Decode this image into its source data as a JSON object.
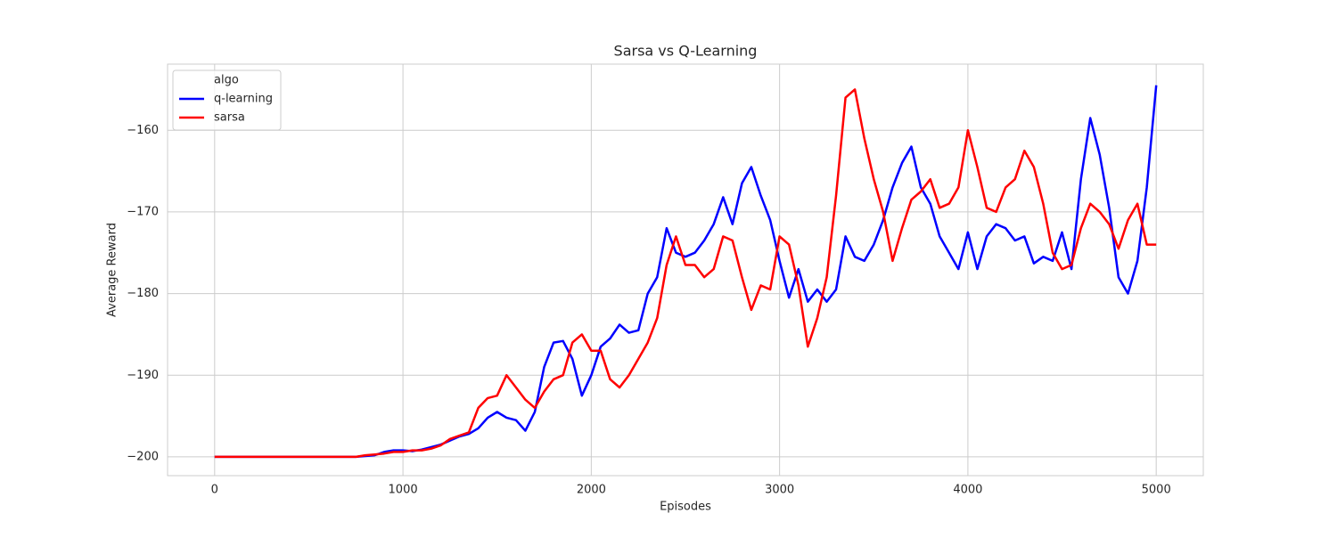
{
  "chart_data": {
    "type": "line",
    "title": "Sarsa vs Q-Learning",
    "x_label": "Episodes",
    "y_label": "Average Reward",
    "legend_title": "algo",
    "legend_position": "upper left",
    "grid": true,
    "x": [
      0,
      50,
      100,
      150,
      200,
      250,
      300,
      350,
      400,
      450,
      500,
      550,
      600,
      650,
      700,
      750,
      800,
      850,
      900,
      950,
      1000,
      1050,
      1100,
      1150,
      1200,
      1250,
      1300,
      1350,
      1400,
      1450,
      1500,
      1550,
      1600,
      1650,
      1700,
      1750,
      1800,
      1850,
      1900,
      1950,
      2000,
      2050,
      2100,
      2150,
      2200,
      2250,
      2300,
      2350,
      2400,
      2450,
      2500,
      2550,
      2600,
      2650,
      2700,
      2750,
      2800,
      2850,
      2900,
      2950,
      3000,
      3050,
      3100,
      3150,
      3200,
      3250,
      3300,
      3350,
      3400,
      3450,
      3500,
      3550,
      3600,
      3650,
      3700,
      3750,
      3800,
      3850,
      3900,
      3950,
      4000,
      4050,
      4100,
      4150,
      4200,
      4250,
      4300,
      4350,
      4400,
      4450,
      4500,
      4550,
      4600,
      4650,
      4700,
      4750,
      4800,
      4850,
      4900,
      4950,
      5000
    ],
    "series": [
      {
        "name": "q-learning",
        "color": "#0000ff",
        "values": [
          -200,
          -200,
          -200,
          -200,
          -200,
          -200,
          -200,
          -200,
          -200,
          -200,
          -200,
          -200,
          -200,
          -200,
          -200,
          -200,
          -199.9,
          -199.8,
          -199.4,
          -199.2,
          -199.2,
          -199.3,
          -199.1,
          -198.8,
          -198.5,
          -198,
          -197.5,
          -197.2,
          -196.5,
          -195.2,
          -194.5,
          -195.2,
          -195.5,
          -196.8,
          -194.5,
          -189,
          -186,
          -185.8,
          -188,
          -192.5,
          -190,
          -186.5,
          -185.5,
          -183.8,
          -184.8,
          -184.5,
          -180,
          -178,
          -172,
          -175,
          -175.5,
          -175,
          -173.5,
          -171.5,
          -168.2,
          -171.5,
          -166.5,
          -164.5,
          -168,
          -171,
          -176,
          -180.5,
          -177,
          -181,
          -179.5,
          -181,
          -179.5,
          -173,
          -175.5,
          -176,
          -174,
          -171,
          -167,
          -164,
          -162,
          -167,
          -169,
          -173,
          -175,
          -177,
          -172.5,
          -177,
          -173,
          -171.5,
          -172,
          -173.5,
          -173,
          -176.3,
          -175.5,
          -176,
          -172.5,
          -177,
          -166,
          -158.5,
          -163,
          -169.5,
          -178,
          -180,
          -176,
          -167,
          -154.5
        ]
      },
      {
        "name": "sarsa",
        "color": "#ff0000",
        "values": [
          -200,
          -200,
          -200,
          -200,
          -200,
          -200,
          -200,
          -200,
          -200,
          -200,
          -200,
          -200,
          -200,
          -200,
          -200,
          -200,
          -199.8,
          -199.7,
          -199.6,
          -199.4,
          -199.4,
          -199.2,
          -199.2,
          -199,
          -198.6,
          -197.8,
          -197.4,
          -197,
          -194,
          -192.8,
          -192.5,
          -190,
          -191.5,
          -193,
          -194,
          -192,
          -190.5,
          -190,
          -186,
          -185,
          -187,
          -187,
          -190.5,
          -191.5,
          -190,
          -188,
          -186,
          -183,
          -176.5,
          -173,
          -176.5,
          -176.5,
          -178,
          -177,
          -173,
          -173.5,
          -178,
          -182,
          -179,
          -179.5,
          -173,
          -174,
          -179,
          -186.5,
          -183,
          -178,
          -168,
          -156,
          -155,
          -161,
          -166,
          -170,
          -176,
          -172,
          -168.5,
          -167.5,
          -166,
          -169.5,
          -169,
          -167,
          -160,
          -164.5,
          -169.5,
          -170,
          -167,
          -166,
          -162.5,
          -164.5,
          -169,
          -175,
          -177,
          -176.5,
          -172,
          -169,
          -170,
          -171.5,
          -174.5,
          -171,
          -169,
          -174,
          -174
        ]
      }
    ],
    "xlim": [
      -250,
      5250
    ],
    "ylim": [
      -202.3,
      -151.9
    ],
    "xticks": [
      0,
      1000,
      2000,
      3000,
      4000,
      5000
    ],
    "yticks": [
      {
        "value": -200,
        "label": "−200"
      },
      {
        "value": -190,
        "label": "−190"
      },
      {
        "value": -180,
        "label": "−180"
      },
      {
        "value": -170,
        "label": "−170"
      },
      {
        "value": -160,
        "label": "−160"
      }
    ]
  }
}
